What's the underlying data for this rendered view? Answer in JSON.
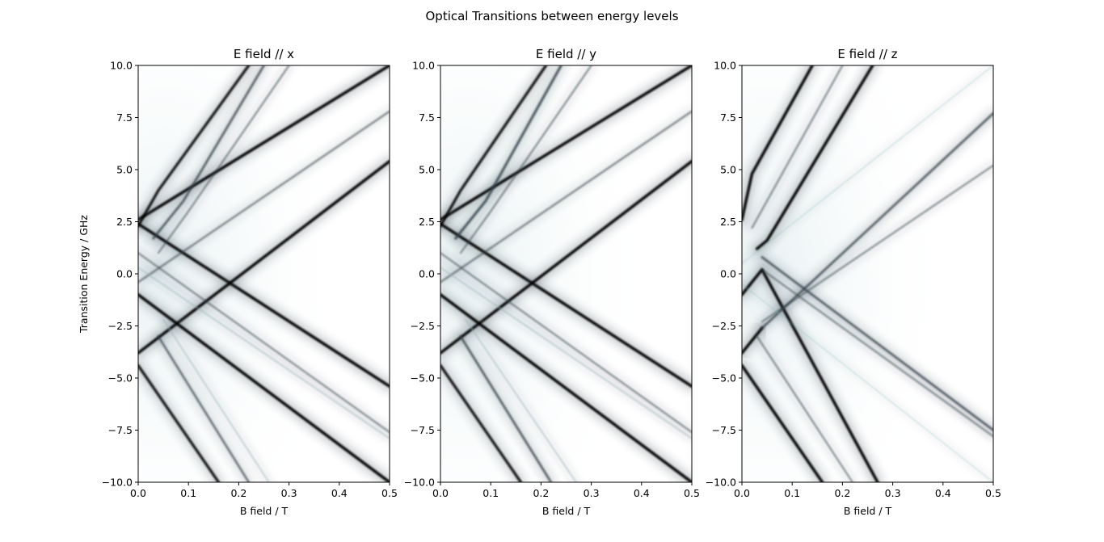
{
  "figure_title": "Optical Transitions between energy levels",
  "colors": {
    "line": "#000000",
    "mid": "#30404a",
    "faint": "#8fb0b5",
    "background_glow": "#e6f0f2"
  },
  "chart_data": [
    {
      "type": "line",
      "title": "E field // x",
      "xlabel": "B field / T",
      "ylabel": "Transition Energy / GHz",
      "xlim": [
        0.0,
        0.5
      ],
      "ylim": [
        -10.0,
        10.0
      ],
      "xticks": [
        "0.0",
        "0.1",
        "0.2",
        "0.3",
        "0.4",
        "0.5"
      ],
      "yticks": [
        "−10.0",
        "−7.5",
        "−5.0",
        "−2.5",
        "0.0",
        "2.5",
        "5.0",
        "7.5",
        "10.0"
      ],
      "grid": false,
      "series": [
        {
          "x": [
            0.0,
            0.5
          ],
          "y": [
            2.6,
            10.0
          ],
          "strength": 1.0
        },
        {
          "x": [
            0.0,
            0.5
          ],
          "y": [
            2.4,
            -5.4
          ],
          "strength": 1.0
        },
        {
          "x": [
            0.0,
            0.5
          ],
          "y": [
            -3.8,
            5.4
          ],
          "strength": 1.0
        },
        {
          "x": [
            0.0,
            0.5
          ],
          "y": [
            -1.0,
            -10.0
          ],
          "strength": 1.0
        },
        {
          "x": [
            0.0,
            0.5
          ],
          "y": [
            -0.4,
            7.8
          ],
          "strength": 0.45
        },
        {
          "x": [
            0.0,
            0.5
          ],
          "y": [
            1.0,
            -7.6
          ],
          "strength": 0.4
        },
        {
          "x": [
            0.0,
            0.5
          ],
          "y": [
            0.3,
            -7.9
          ],
          "strength": 0.3
        },
        {
          "x": [
            0.0,
            0.04,
            0.22
          ],
          "y": [
            2.3,
            4.0,
            10.0
          ],
          "strength": 0.9
        },
        {
          "x": [
            0.03,
            0.09,
            0.25
          ],
          "y": [
            1.7,
            3.5,
            10.0
          ],
          "strength": 0.7
        },
        {
          "x": [
            0.04,
            0.1,
            0.3
          ],
          "y": [
            1.0,
            3.0,
            10.0
          ],
          "strength": 0.4
        },
        {
          "x": [
            0.0,
            0.16
          ],
          "y": [
            -4.4,
            -10.0
          ],
          "strength": 0.9
        },
        {
          "x": [
            0.04,
            0.22
          ],
          "y": [
            -3.0,
            -10.0
          ],
          "strength": 0.6
        },
        {
          "x": [
            0.05,
            0.26
          ],
          "y": [
            -2.2,
            -10.0
          ],
          "strength": 0.3
        }
      ]
    },
    {
      "type": "line",
      "title": "E field // y",
      "xlabel": "B field / T",
      "ylabel": "",
      "xlim": [
        0.0,
        0.5
      ],
      "ylim": [
        -10.0,
        10.0
      ],
      "xticks": [
        "0.0",
        "0.1",
        "0.2",
        "0.3",
        "0.4",
        "0.5"
      ],
      "yticks": [
        "−10.0",
        "−7.5",
        "−5.0",
        "−2.5",
        "0.0",
        "2.5",
        "5.0",
        "7.5",
        "10.0"
      ],
      "grid": false,
      "series": [
        {
          "x": [
            0.0,
            0.5
          ],
          "y": [
            2.6,
            10.0
          ],
          "strength": 1.0
        },
        {
          "x": [
            0.0,
            0.5
          ],
          "y": [
            2.4,
            -5.4
          ],
          "strength": 1.0
        },
        {
          "x": [
            0.0,
            0.5
          ],
          "y": [
            -3.8,
            5.4
          ],
          "strength": 1.0
        },
        {
          "x": [
            0.0,
            0.5
          ],
          "y": [
            -1.0,
            -10.0
          ],
          "strength": 1.0
        },
        {
          "x": [
            0.0,
            0.5
          ],
          "y": [
            -0.4,
            7.8
          ],
          "strength": 0.45
        },
        {
          "x": [
            0.0,
            0.5
          ],
          "y": [
            1.0,
            -7.6
          ],
          "strength": 0.4
        },
        {
          "x": [
            0.0,
            0.5
          ],
          "y": [
            0.3,
            -7.9
          ],
          "strength": 0.3
        },
        {
          "x": [
            0.0,
            0.04,
            0.21
          ],
          "y": [
            2.3,
            4.0,
            10.0
          ],
          "strength": 0.9
        },
        {
          "x": [
            0.03,
            0.09,
            0.24
          ],
          "y": [
            1.7,
            3.5,
            10.0
          ],
          "strength": 0.8
        },
        {
          "x": [
            0.04,
            0.1,
            0.3
          ],
          "y": [
            1.0,
            3.0,
            10.0
          ],
          "strength": 0.4
        },
        {
          "x": [
            0.0,
            0.16
          ],
          "y": [
            -4.4,
            -10.0
          ],
          "strength": 0.9
        },
        {
          "x": [
            0.04,
            0.22
          ],
          "y": [
            -3.0,
            -10.0
          ],
          "strength": 0.7
        },
        {
          "x": [
            0.05,
            0.27
          ],
          "y": [
            -2.2,
            -10.0
          ],
          "strength": 0.3
        }
      ]
    },
    {
      "type": "line",
      "title": "E field // z",
      "xlabel": "B field / T",
      "ylabel": "",
      "xlim": [
        0.0,
        0.5
      ],
      "ylim": [
        -10.0,
        10.0
      ],
      "xticks": [
        "0.0",
        "0.1",
        "0.2",
        "0.3",
        "0.4",
        "0.5"
      ],
      "yticks": [
        "−10.0",
        "−7.5",
        "−5.0",
        "−2.5",
        "0.0",
        "2.5",
        "5.0",
        "7.5",
        "10.0"
      ],
      "grid": false,
      "series": [
        {
          "x": [
            0.0,
            0.02,
            0.14
          ],
          "y": [
            2.6,
            4.8,
            10.0
          ],
          "strength": 1.0
        },
        {
          "x": [
            0.03,
            0.05,
            0.26
          ],
          "y": [
            1.2,
            1.6,
            10.0
          ],
          "strength": 1.0
        },
        {
          "x": [
            0.0,
            0.04,
            0.27
          ],
          "y": [
            -1.0,
            0.2,
            -10.0
          ],
          "strength": 1.0
        },
        {
          "x": [
            0.0,
            0.16
          ],
          "y": [
            -4.4,
            -10.0
          ],
          "strength": 1.0
        },
        {
          "x": [
            0.0,
            0.04
          ],
          "y": [
            -3.8,
            -2.6
          ],
          "strength": 1.0
        },
        {
          "x": [
            0.04,
            0.5
          ],
          "y": [
            0.8,
            -7.5
          ],
          "strength": 0.7
        },
        {
          "x": [
            0.04,
            0.5
          ],
          "y": [
            -2.6,
            7.7
          ],
          "strength": 0.7
        },
        {
          "x": [
            0.04,
            0.5
          ],
          "y": [
            -2.3,
            5.2
          ],
          "strength": 0.4
        },
        {
          "x": [
            0.04,
            0.5
          ],
          "y": [
            0.2,
            -7.8
          ],
          "strength": 0.4
        },
        {
          "x": [
            0.02,
            0.2
          ],
          "y": [
            2.2,
            10.0
          ],
          "strength": 0.4
        },
        {
          "x": [
            0.03,
            0.22
          ],
          "y": [
            -3.0,
            -10.0
          ],
          "strength": 0.4
        },
        {
          "x": [
            0.0,
            0.5
          ],
          "y": [
            0.5,
            10.0
          ],
          "strength": 0.12
        },
        {
          "x": [
            0.0,
            0.5
          ],
          "y": [
            -0.5,
            -10.0
          ],
          "strength": 0.12
        }
      ]
    }
  ]
}
